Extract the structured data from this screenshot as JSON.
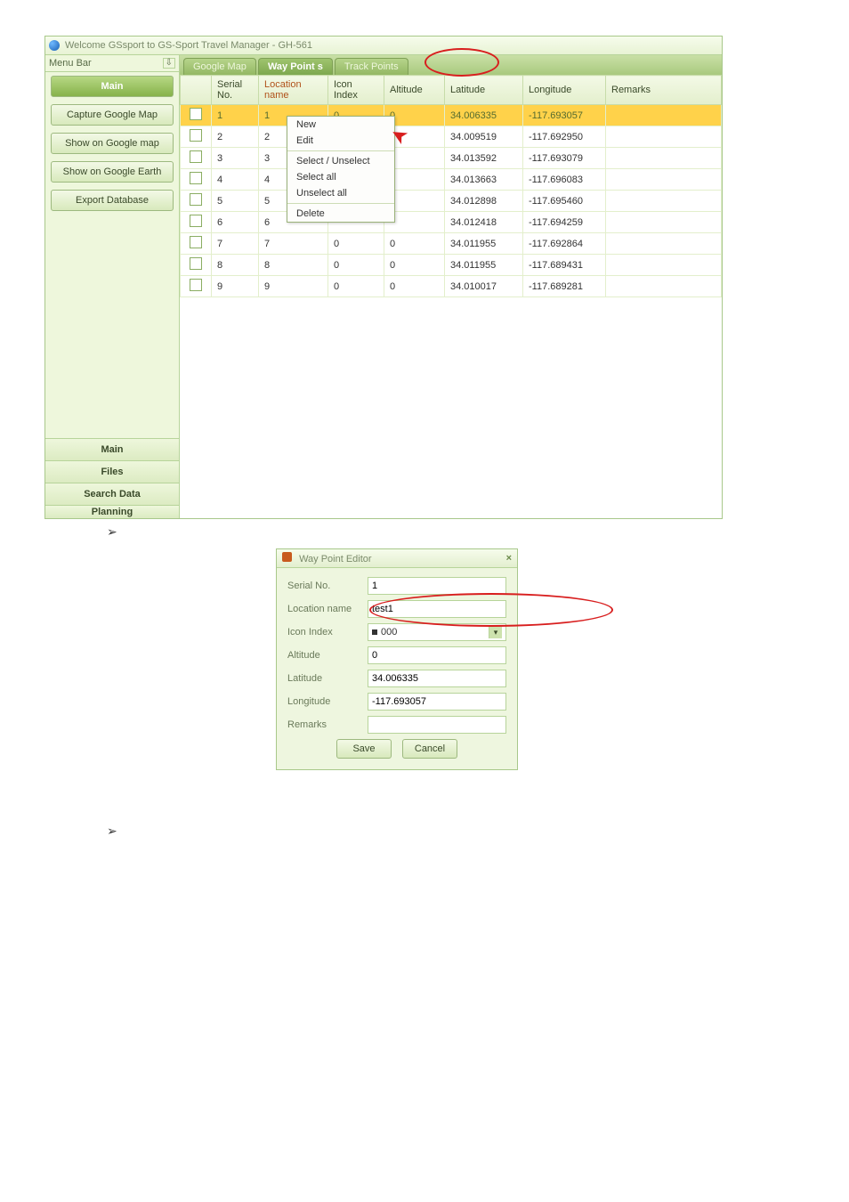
{
  "window": {
    "title": "Welcome GSsport to GS-Sport Travel Manager - GH-561"
  },
  "sidebar": {
    "header": "Menu Bar",
    "main_label": "Main",
    "buttons": {
      "capture": "Capture Google Map",
      "show_map": "Show on Google map",
      "show_earth": "Show on Google Earth",
      "export": "Export Database"
    },
    "groups": {
      "main": "Main",
      "files": "Files",
      "search": "Search Data",
      "planning": "Planning"
    }
  },
  "tabs": {
    "google_map": "Google Map",
    "way_points": "Way Point s",
    "track_points": "Track Points"
  },
  "table": {
    "headers": {
      "serial": "Serial No.",
      "loc": "Location name",
      "icon": "Icon Index",
      "alt": "Altitude",
      "lat": "Latitude",
      "lon": "Longitude",
      "rem": "Remarks"
    },
    "rows": [
      {
        "n": "1",
        "loc": "1",
        "icon": "0",
        "alt": "0",
        "lat": "34.006335",
        "lon": "-117.693057",
        "hl": true
      },
      {
        "n": "2",
        "loc": "2",
        "icon": "",
        "alt": "",
        "lat": "34.009519",
        "lon": "-117.692950"
      },
      {
        "n": "3",
        "loc": "3",
        "icon": "",
        "alt": "",
        "lat": "34.013592",
        "lon": "-117.693079"
      },
      {
        "n": "4",
        "loc": "4",
        "icon": "",
        "alt": "",
        "lat": "34.013663",
        "lon": "-117.696083"
      },
      {
        "n": "5",
        "loc": "5",
        "icon": "",
        "alt": "",
        "lat": "34.012898",
        "lon": "-117.695460"
      },
      {
        "n": "6",
        "loc": "6",
        "icon": "",
        "alt": "",
        "lat": "34.012418",
        "lon": "-117.694259"
      },
      {
        "n": "7",
        "loc": "7",
        "icon": "0",
        "alt": "0",
        "lat": "34.011955",
        "lon": "-117.692864"
      },
      {
        "n": "8",
        "loc": "8",
        "icon": "0",
        "alt": "0",
        "lat": "34.011955",
        "lon": "-117.689431"
      },
      {
        "n": "9",
        "loc": "9",
        "icon": "0",
        "alt": "0",
        "lat": "34.010017",
        "lon": "-117.689281"
      }
    ]
  },
  "context_menu": {
    "new": "New",
    "edit": "Edit",
    "sel_unsel": "Select / Unselect",
    "sel_all": "Select all",
    "unsel_all": "Unselect all",
    "delete": "Delete"
  },
  "editor": {
    "title": "Way Point Editor",
    "labels": {
      "serial": "Serial No.",
      "loc": "Location name",
      "icon": "Icon Index",
      "alt": "Altitude",
      "lat": "Latitude",
      "lon": "Longitude",
      "rem": "Remarks"
    },
    "values": {
      "serial": "1",
      "loc": "test1",
      "icon": "000",
      "alt": "0",
      "lat": "34.006335",
      "lon": "-117.693057",
      "rem": ""
    },
    "buttons": {
      "save": "Save",
      "cancel": "Cancel"
    }
  },
  "colors": {
    "highlight_row": "#ffd24a",
    "annotation": "#d81e1e"
  }
}
